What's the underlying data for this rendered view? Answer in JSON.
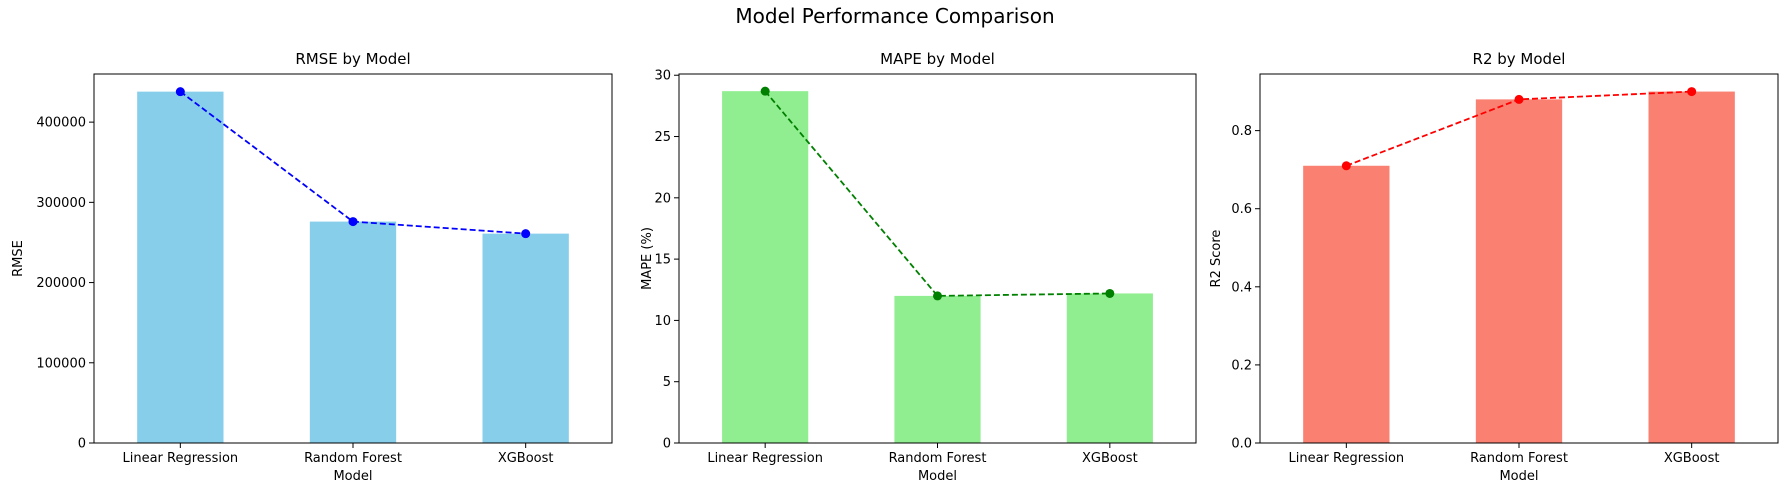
{
  "figure_title": "Model Performance Comparison",
  "chart_data": [
    {
      "type": "bar",
      "title": "RMSE by Model",
      "xlabel": "Model",
      "ylabel": "RMSE",
      "categories": [
        "Linear Regression",
        "Random Forest",
        "XGBoost"
      ],
      "values": [
        438000,
        276000,
        261000
      ],
      "ylim": [
        0,
        460000
      ],
      "yticks": [
        0,
        100000,
        200000,
        300000,
        400000
      ],
      "ytick_labels": [
        "0",
        "100000",
        "200000",
        "300000",
        "400000"
      ],
      "bar_color": "#87ceeb",
      "line_color": "#0000ff",
      "grid": false
    },
    {
      "type": "bar",
      "title": "MAPE by Model",
      "xlabel": "Model",
      "ylabel": "MAPE (%)",
      "categories": [
        "Linear Regression",
        "Random Forest",
        "XGBoost"
      ],
      "values": [
        28.7,
        12.0,
        12.2
      ],
      "ylim": [
        0,
        30.1
      ],
      "yticks": [
        0,
        5,
        10,
        15,
        20,
        25,
        30
      ],
      "ytick_labels": [
        "0",
        "5",
        "10",
        "15",
        "20",
        "25",
        "30"
      ],
      "bar_color": "#90ee90",
      "line_color": "#008000",
      "grid": false
    },
    {
      "type": "bar",
      "title": "R2 by Model",
      "xlabel": "Model",
      "ylabel": "R2 Score",
      "categories": [
        "Linear Regression",
        "Random Forest",
        "XGBoost"
      ],
      "values": [
        0.71,
        0.88,
        0.9
      ],
      "ylim": [
        0,
        0.945
      ],
      "yticks": [
        0,
        0.2,
        0.4,
        0.6,
        0.8
      ],
      "ytick_labels": [
        "0.0",
        "0.2",
        "0.4",
        "0.6",
        "0.8"
      ],
      "bar_color": "#fa8072",
      "line_color": "#ff0000",
      "grid": false
    }
  ]
}
